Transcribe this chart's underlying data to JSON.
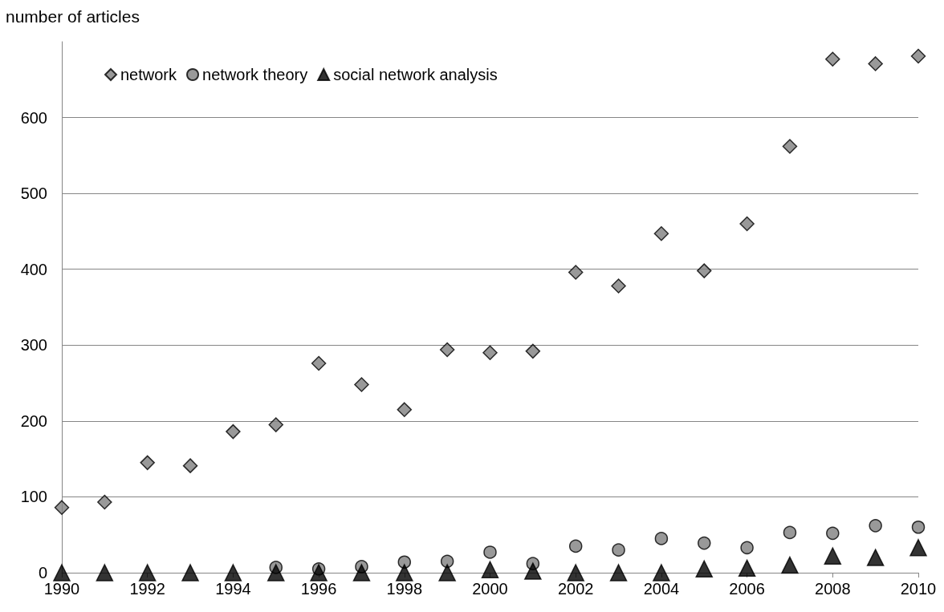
{
  "chart_data": {
    "type": "scatter",
    "ylabel": "number of articles",
    "x": [
      1990,
      1991,
      1992,
      1993,
      1994,
      1995,
      1996,
      1997,
      1998,
      1999,
      2000,
      2001,
      2002,
      2003,
      2004,
      2005,
      2006,
      2007,
      2008,
      2009,
      2010
    ],
    "xlim": [
      1990,
      2010
    ],
    "xticks": [
      1990,
      1992,
      1994,
      1996,
      1998,
      2000,
      2002,
      2004,
      2006,
      2008,
      2010
    ],
    "ylim": [
      0,
      700
    ],
    "yticks": [
      0,
      100,
      200,
      300,
      400,
      500,
      600
    ],
    "grid": "y",
    "legend": "top left",
    "series": [
      {
        "name": "network",
        "color": "#808080",
        "marker": "diamond",
        "values": [
          86,
          93,
          145,
          141,
          186,
          195,
          276,
          248,
          215,
          294,
          290,
          292,
          396,
          378,
          447,
          398,
          460,
          562,
          677,
          671,
          681
        ]
      },
      {
        "name": "network theory",
        "color": "#808080",
        "marker": "circle",
        "values": [
          null,
          null,
          null,
          null,
          null,
          7,
          5,
          8,
          14,
          15,
          27,
          12,
          35,
          30,
          45,
          39,
          33,
          53,
          52,
          62,
          60
        ]
      },
      {
        "name": "social network analysis",
        "color": "#000000",
        "marker": "triangle",
        "values": [
          0,
          0,
          0,
          0,
          0,
          0,
          0,
          0,
          0,
          0,
          4,
          2,
          0,
          0,
          0,
          5,
          6,
          10,
          22,
          20,
          33
        ]
      }
    ]
  }
}
